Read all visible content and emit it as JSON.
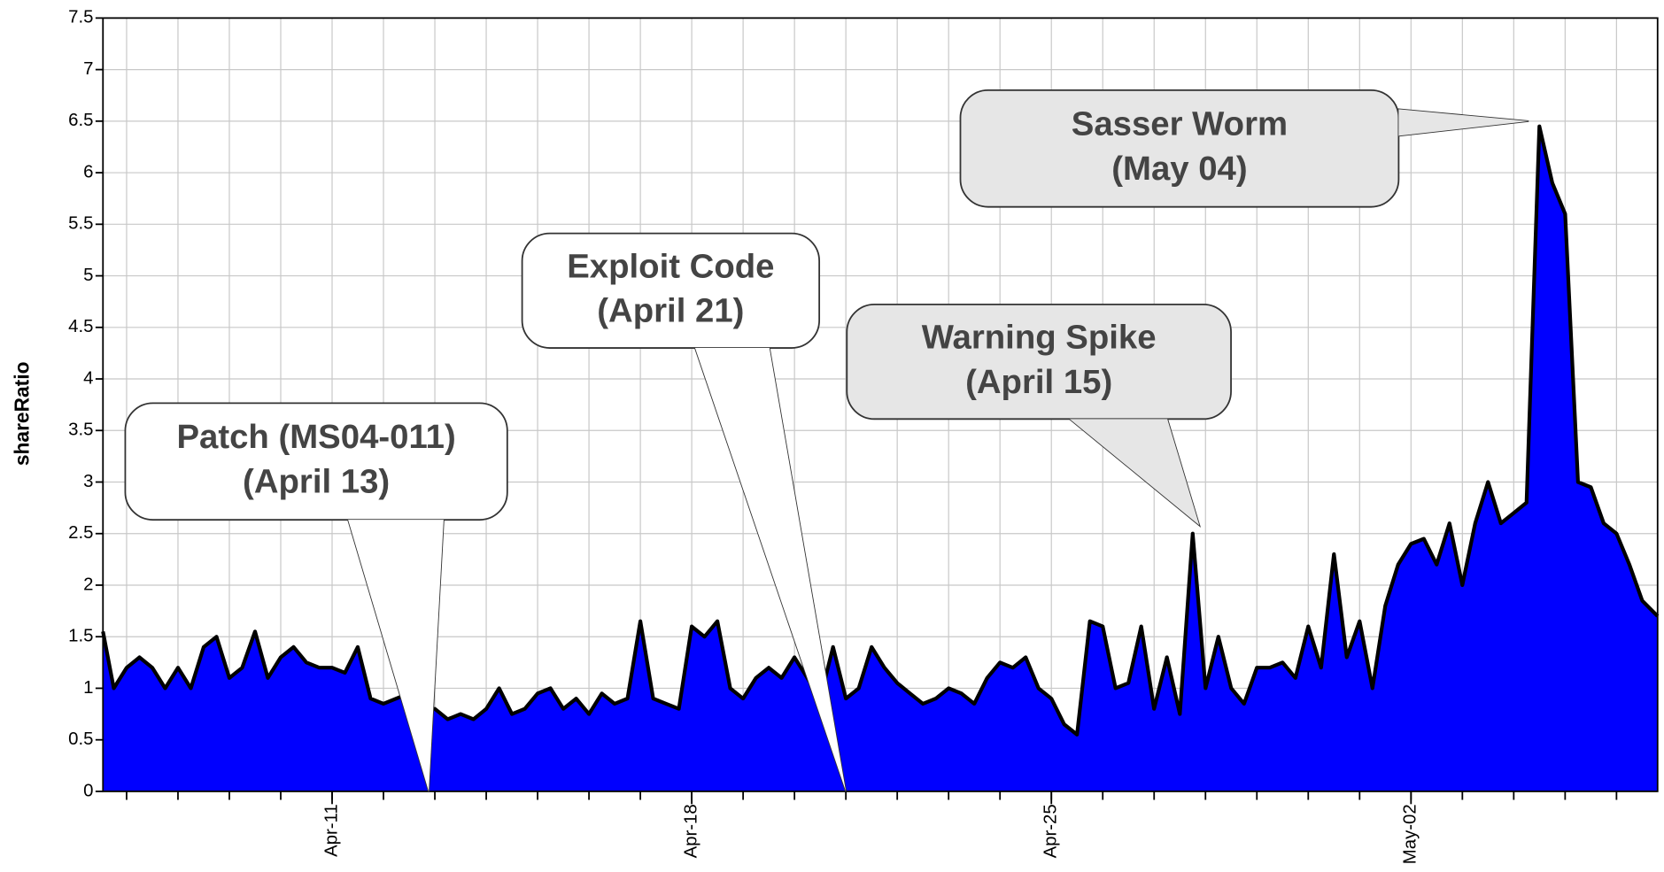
{
  "chart_data": {
    "type": "area",
    "y_label": "shareRatio",
    "xlim": [
      6.54,
      36.8
    ],
    "ylim": [
      0,
      7.5
    ],
    "yticks": [
      0,
      0.5,
      1,
      1.5,
      2,
      2.5,
      3,
      3.5,
      4,
      4.5,
      5,
      5.5,
      6,
      6.5,
      7,
      7.5
    ],
    "xticks": [
      {
        "value": 11,
        "label": "Apr-11"
      },
      {
        "value": 18,
        "label": "Apr-18"
      },
      {
        "value": 25,
        "label": "Apr-25"
      },
      {
        "value": 32,
        "label": "May-02"
      }
    ],
    "minor_xticks": [
      7,
      8,
      9,
      10,
      11,
      12,
      13,
      14,
      15,
      16,
      17,
      18,
      19,
      20,
      21,
      22,
      23,
      24,
      25,
      26,
      27,
      28,
      29,
      30,
      31,
      32,
      33,
      34,
      35,
      36
    ],
    "grid": true,
    "x": [
      6.54,
      6.75,
      7,
      7.25,
      7.5,
      7.75,
      8,
      8.25,
      8.5,
      8.75,
      9,
      9.25,
      9.5,
      9.75,
      10,
      10.25,
      10.5,
      10.75,
      11,
      11.25,
      11.5,
      11.75,
      12,
      12.25,
      12.5,
      12.75,
      13,
      13.25,
      13.5,
      13.75,
      14,
      14.25,
      14.5,
      14.75,
      15,
      15.25,
      15.5,
      15.75,
      16,
      16.25,
      16.5,
      16.75,
      17,
      17.25,
      17.5,
      17.75,
      18,
      18.25,
      18.5,
      18.75,
      19,
      19.25,
      19.5,
      19.75,
      20,
      20.25,
      20.5,
      20.75,
      21,
      21.25,
      21.5,
      21.75,
      22,
      22.25,
      22.5,
      22.75,
      23,
      23.25,
      23.5,
      23.75,
      24,
      24.25,
      24.5,
      24.75,
      25,
      25.25,
      25.5,
      25.75,
      26,
      26.25,
      26.5,
      26.75,
      27,
      27.25,
      27.5,
      27.75,
      28,
      28.25,
      28.5,
      28.75,
      29,
      29.25,
      29.5,
      29.75,
      30,
      30.25,
      30.5,
      30.75,
      31,
      31.25,
      31.5,
      31.75,
      32,
      32.25,
      32.5,
      32.75,
      33,
      33.25,
      33.5,
      33.75,
      34,
      34.25,
      34.5,
      34.75,
      35,
      35.25,
      35.5,
      35.75,
      36,
      36.25,
      36.5,
      36.8
    ],
    "series": [
      {
        "color": "#0000ff",
        "line_color": "#000000",
        "values": [
          1.55,
          1.0,
          1.2,
          1.3,
          1.2,
          1.0,
          1.2,
          1.0,
          1.4,
          1.5,
          1.1,
          1.2,
          1.55,
          1.1,
          1.3,
          1.4,
          1.25,
          1.2,
          1.2,
          1.15,
          1.4,
          0.9,
          0.85,
          0.9,
          0.95,
          0.8,
          0.8,
          0.7,
          0.75,
          0.7,
          0.8,
          1.0,
          0.75,
          0.8,
          0.95,
          1.0,
          0.8,
          0.9,
          0.75,
          0.95,
          0.85,
          0.9,
          1.65,
          0.9,
          0.85,
          0.8,
          1.6,
          1.5,
          1.65,
          1.0,
          0.9,
          1.1,
          1.2,
          1.1,
          1.3,
          1.1,
          0.9,
          1.4,
          0.9,
          1.0,
          1.4,
          1.2,
          1.05,
          0.95,
          0.85,
          0.9,
          1.0,
          0.95,
          0.85,
          1.1,
          1.25,
          1.2,
          1.3,
          1.0,
          0.9,
          0.65,
          0.55,
          1.65,
          1.6,
          1.0,
          1.05,
          1.6,
          0.8,
          1.3,
          0.75,
          2.5,
          1.0,
          1.5,
          1.0,
          0.85,
          1.2,
          1.2,
          1.25,
          1.1,
          1.6,
          1.2,
          2.3,
          1.3,
          1.65,
          1.0,
          1.8,
          2.2,
          2.4,
          2.45,
          2.2,
          2.6,
          2.0,
          2.6,
          3.0,
          2.6,
          2.7,
          2.8,
          6.45,
          5.9,
          5.6,
          3.0,
          2.95,
          2.6,
          2.5,
          2.2,
          1.85,
          1.7
        ]
      }
    ],
    "annotations": [
      {
        "lines": [
          "Patch (MS04-011)",
          "(April 13)"
        ],
        "x": 12.88,
        "y": 0,
        "fill": "#ffffff"
      },
      {
        "lines": [
          "Exploit Code",
          "(April 21)"
        ],
        "x": 21.0,
        "y": 0,
        "fill": "#ffffff"
      },
      {
        "lines": [
          "Warning Spike",
          "(April 15)"
        ],
        "x": 27.88,
        "y": 2.58,
        "fill": "#e6e6e6"
      },
      {
        "lines": [
          "Sasser Worm",
          "(May 04)"
        ],
        "x": 34.29,
        "y": 6.5,
        "fill": "#e6e6e6"
      }
    ]
  }
}
